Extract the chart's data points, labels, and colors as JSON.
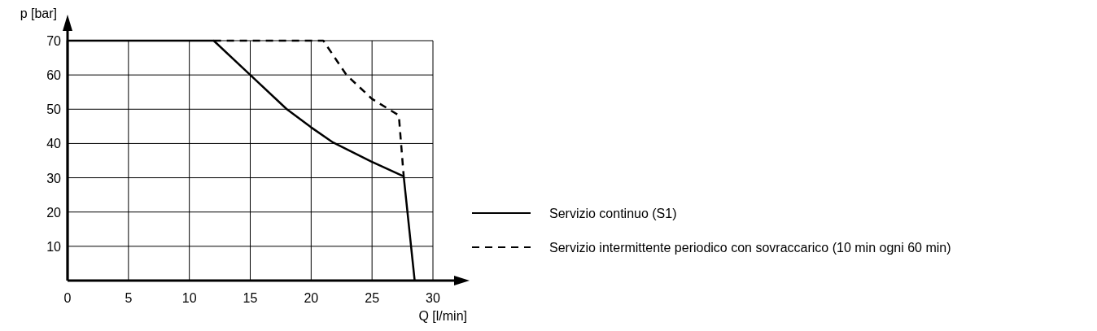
{
  "chart_data": {
    "type": "line",
    "xlabel": "Q [l/min]",
    "ylabel": "p [bar]",
    "xlim": [
      0,
      30
    ],
    "ylim": [
      0,
      70
    ],
    "xticks": [
      0,
      5,
      10,
      15,
      20,
      25,
      30
    ],
    "yticks": [
      10,
      20,
      30,
      40,
      50,
      60,
      70
    ],
    "grid": true,
    "legend": "right",
    "series": [
      {
        "name": "Servizio continuo (S1)",
        "color": "#000000",
        "line_style": "solid",
        "x": [
          0,
          0,
          12,
          15,
          18,
          20,
          21.8,
          24.9,
          27.6,
          28.5
        ],
        "values": [
          0,
          70,
          70,
          60,
          50,
          44.7,
          40.3,
          34.8,
          30.4,
          0
        ]
      },
      {
        "name": "Servizio intermittente periodico con sovraccarico (10 min ogni 60 min)",
        "color": "#000000",
        "line_style": "dashed",
        "x": [
          12,
          21,
          22.9,
          25,
          27.2,
          27.6
        ],
        "values": [
          70,
          70,
          60,
          53,
          48.2,
          30.4
        ]
      }
    ]
  }
}
